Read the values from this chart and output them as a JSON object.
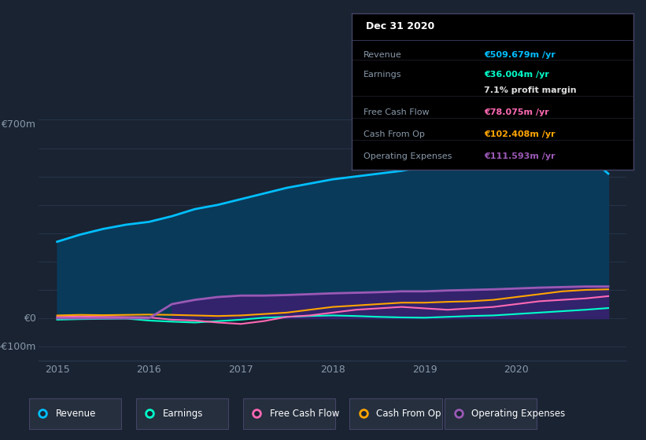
{
  "background_color": "#1a2332",
  "plot_bg_color": "#1a2332",
  "grid_color": "#2a3a52",
  "text_color": "#8899aa",
  "years": [
    2015.0,
    2015.25,
    2015.5,
    2015.75,
    2016.0,
    2016.25,
    2016.5,
    2016.75,
    2017.0,
    2017.25,
    2017.5,
    2017.75,
    2018.0,
    2018.25,
    2018.5,
    2018.75,
    2019.0,
    2019.25,
    2019.5,
    2019.75,
    2020.0,
    2020.25,
    2020.5,
    2020.75,
    2021.0
  ],
  "revenue": [
    270,
    295,
    315,
    330,
    340,
    360,
    385,
    400,
    420,
    440,
    460,
    475,
    490,
    500,
    510,
    520,
    535,
    570,
    610,
    640,
    660,
    670,
    650,
    580,
    510
  ],
  "earnings": [
    -5,
    -3,
    -2,
    -1,
    -8,
    -12,
    -15,
    -10,
    -5,
    2,
    5,
    8,
    10,
    8,
    5,
    3,
    2,
    5,
    8,
    10,
    15,
    20,
    25,
    30,
    36
  ],
  "free_cash_flow": [
    5,
    6,
    5,
    4,
    3,
    -5,
    -8,
    -15,
    -20,
    -10,
    5,
    10,
    20,
    30,
    35,
    40,
    35,
    30,
    35,
    40,
    50,
    60,
    65,
    70,
    78
  ],
  "cash_from_op": [
    10,
    12,
    11,
    12,
    13,
    12,
    10,
    8,
    10,
    15,
    20,
    30,
    40,
    45,
    50,
    55,
    55,
    58,
    60,
    65,
    75,
    85,
    95,
    100,
    102
  ],
  "operating_expenses": [
    0,
    0,
    0,
    0,
    0,
    50,
    65,
    75,
    80,
    80,
    82,
    85,
    88,
    90,
    92,
    95,
    95,
    98,
    100,
    102,
    105,
    108,
    110,
    112,
    112
  ],
  "revenue_color": "#00bfff",
  "earnings_color": "#00ffcc",
  "fcf_color": "#ff69b4",
  "cashop_color": "#ffa500",
  "opex_color": "#9b59b6",
  "revenue_fill_color": "#0a3a5a",
  "opex_fill_color": "#3a2070",
  "ylim_min": -150,
  "ylim_max": 750,
  "xlim_min": 2014.8,
  "xlim_max": 2021.2,
  "xticks": [
    2015,
    2016,
    2017,
    2018,
    2019,
    2020
  ],
  "tooltip_title": "Dec 31 2020",
  "tooltip_rows": [
    {
      "label": "Revenue",
      "value": "€509.679m /yr",
      "color": "#00bfff",
      "divider": true
    },
    {
      "label": "Earnings",
      "value": "€36.004m /yr",
      "color": "#00ffcc",
      "divider": false
    },
    {
      "label": "",
      "value": "7.1% profit margin",
      "color": "#dddddd",
      "divider": true
    },
    {
      "label": "Free Cash Flow",
      "value": "€78.075m /yr",
      "color": "#ff69b4",
      "divider": true
    },
    {
      "label": "Cash From Op",
      "value": "€102.408m /yr",
      "color": "#ffa500",
      "divider": true
    },
    {
      "label": "Operating Expenses",
      "value": "€111.593m /yr",
      "color": "#9b59b6",
      "divider": false
    }
  ],
  "legend_entries": [
    {
      "label": "Revenue",
      "color": "#00bfff"
    },
    {
      "label": "Earnings",
      "color": "#00ffcc"
    },
    {
      "label": "Free Cash Flow",
      "color": "#ff69b4"
    },
    {
      "label": "Cash From Op",
      "color": "#ffa500"
    },
    {
      "label": "Operating Expenses",
      "color": "#9b59b6"
    }
  ]
}
